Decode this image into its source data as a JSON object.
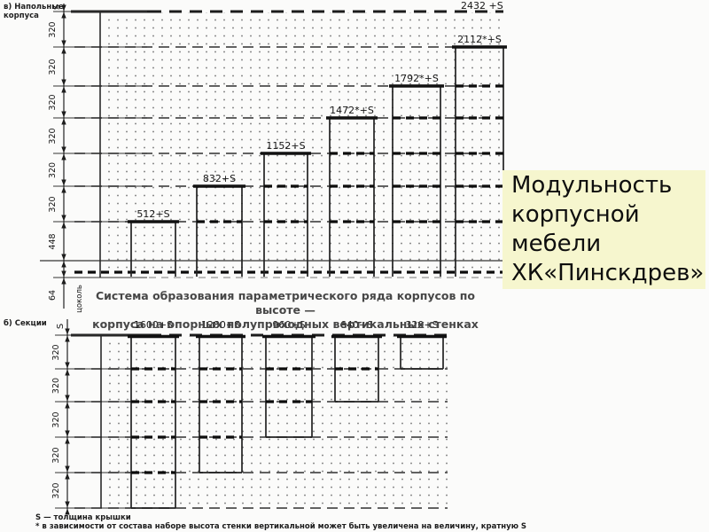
{
  "page": {
    "background": "#fbfbfa"
  },
  "title_box": {
    "text": "Модульность корпусной мебели ХК«Пинскдрев»",
    "background": "#f6f6ce"
  },
  "notes": {
    "line1": "S — толщина крышки",
    "line2": "* в зависимости от состава наборе высота стенки вертикальной может быть увеличена на величину, кратную S"
  },
  "chart_data": [
    {
      "id": "floor-cabinets",
      "type": "bar",
      "section_label": "в) Напольные корпуса",
      "title_line1": "Система образования параметрического ряда корпусов по высоте —",
      "title_line2": "корпуса на опорных полупроходных вертикальных стенках",
      "axis_top_label": "S",
      "axis_segments": [
        "320",
        "320",
        "320",
        "320",
        "320",
        "320",
        "448",
        "64"
      ],
      "base_axis_label": "цоколь",
      "max_level_label": "2432 +S",
      "bar_direction": "up",
      "ylim": [
        0,
        2432
      ],
      "bars": [
        {
          "label": "512+S",
          "value": 512
        },
        {
          "label": "832+S",
          "value": 832
        },
        {
          "label": "1152+S",
          "value": 1152
        },
        {
          "label": "1472*+S",
          "value": 1472
        },
        {
          "label": "1792*+S",
          "value": 1792
        },
        {
          "label": "2112*+S",
          "value": 2112
        }
      ]
    },
    {
      "id": "sections",
      "type": "bar",
      "section_label": "б) Секции",
      "axis_top_label": "S",
      "axis_segments": [
        "320",
        "320",
        "320",
        "320",
        "320"
      ],
      "bar_direction": "down",
      "ylim": [
        0,
        1600
      ],
      "bars": [
        {
          "label": "1600+S",
          "value": 1600
        },
        {
          "label": "1280+S",
          "value": 1280
        },
        {
          "label": "960+S",
          "value": 960
        },
        {
          "label": "640+S",
          "value": 640
        },
        {
          "label": "320+S",
          "value": 320
        }
      ]
    }
  ]
}
